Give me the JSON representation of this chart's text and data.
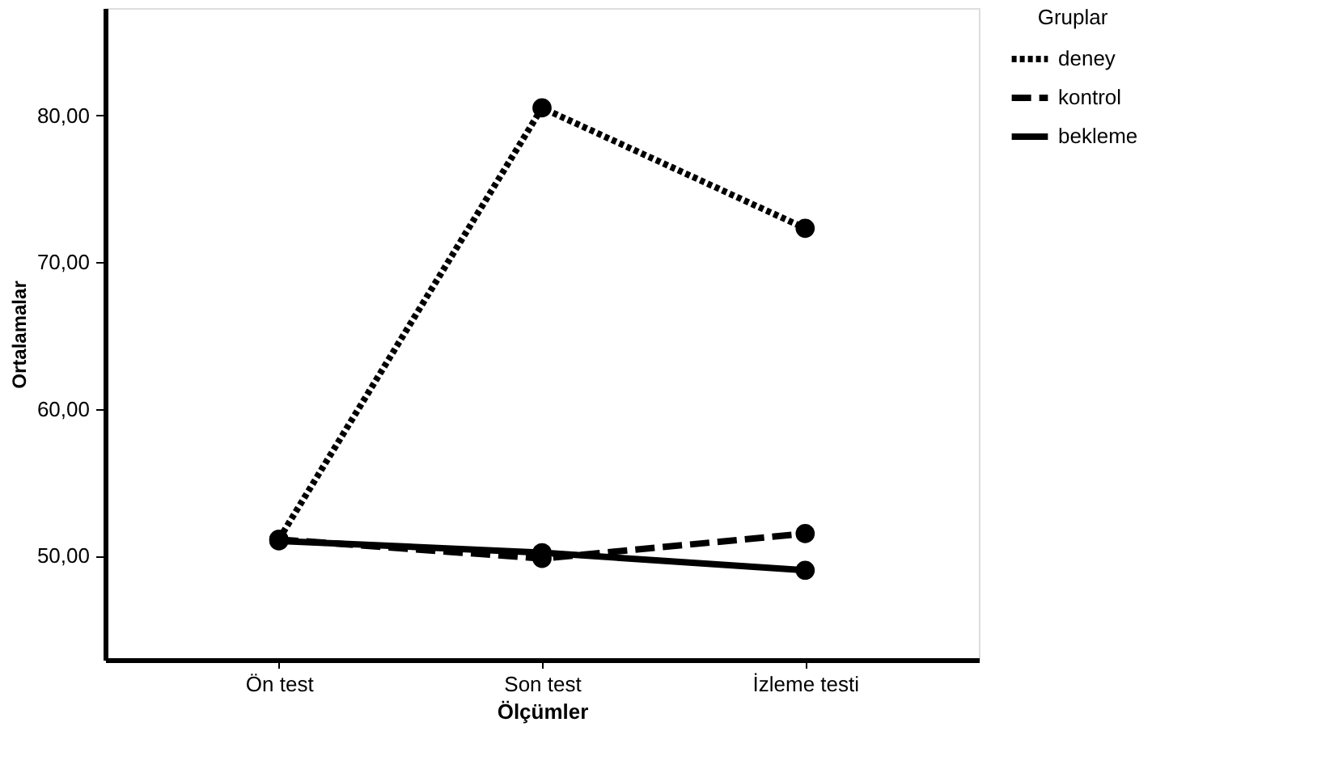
{
  "chart_data": {
    "type": "line",
    "xlabel": "Ölçümler",
    "ylabel": "Ortalamalar",
    "legend_title": "Gruplar",
    "categories": [
      "Ön test",
      "Son test",
      "İzleme testi"
    ],
    "series": [
      {
        "name": "deney",
        "color": "#000000",
        "line_style": "dotted",
        "values": [
          51.1,
          80.5,
          72.3
        ]
      },
      {
        "name": "kontrol",
        "color": "#000000",
        "line_style": "dashed",
        "values": [
          51.1,
          49.8,
          51.5
        ]
      },
      {
        "name": "bekleme",
        "color": "#000000",
        "line_style": "solid",
        "values": [
          51.0,
          50.2,
          49.0
        ]
      }
    ],
    "ylim": [
      42.9,
      87.3
    ],
    "yticks": [
      {
        "value": 50,
        "label": "50,00"
      },
      {
        "value": 60,
        "label": "60,00"
      },
      {
        "value": 70,
        "label": "70,00"
      },
      {
        "value": 80,
        "label": "80,00"
      }
    ],
    "marker": "circle",
    "grid": false,
    "legend": "top right"
  }
}
